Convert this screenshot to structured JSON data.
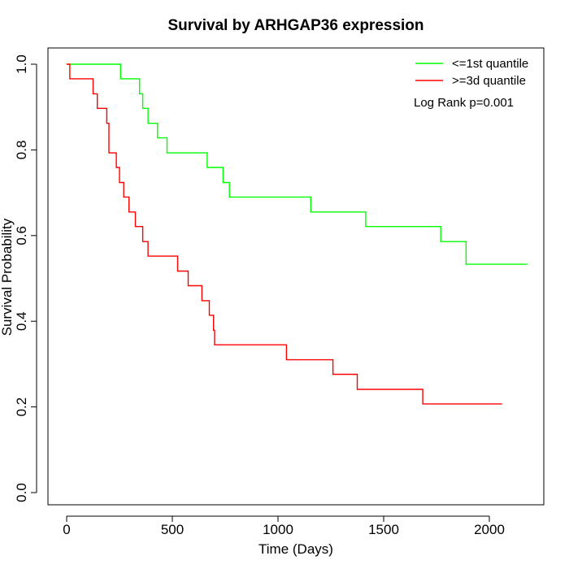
{
  "chart_data": {
    "type": "line",
    "title": "Survival by ARHGAP36 expression",
    "xlabel": "Time (Days)",
    "ylabel": "Survival Probability",
    "xlim": [
      0,
      2200
    ],
    "ylim": [
      0,
      1
    ],
    "x_ticks": [
      0,
      500,
      1000,
      1500,
      2000
    ],
    "x_tick_labels": [
      "0",
      "500",
      "1000",
      "1500",
      "2000"
    ],
    "y_ticks": [
      0,
      0.2,
      0.4,
      0.6,
      0.8,
      1
    ],
    "y_tick_labels": [
      "0.0",
      "0.2",
      "0.4",
      "0.6",
      "0.8",
      "1.0"
    ],
    "grid": false,
    "legend_position": "top-right",
    "annotation": "Log Rank p=0.001",
    "series": [
      {
        "name": "<=1st quantile",
        "color": "#00ff00",
        "step": true,
        "points": [
          [
            0,
            1.0
          ],
          [
            255,
            1.0
          ],
          [
            255,
            0.966
          ],
          [
            345,
            0.966
          ],
          [
            345,
            0.931
          ],
          [
            360,
            0.931
          ],
          [
            360,
            0.897
          ],
          [
            385,
            0.897
          ],
          [
            385,
            0.862
          ],
          [
            430,
            0.862
          ],
          [
            430,
            0.828
          ],
          [
            475,
            0.828
          ],
          [
            475,
            0.793
          ],
          [
            665,
            0.793
          ],
          [
            665,
            0.759
          ],
          [
            740,
            0.759
          ],
          [
            740,
            0.724
          ],
          [
            770,
            0.724
          ],
          [
            770,
            0.69
          ],
          [
            1155,
            0.69
          ],
          [
            1155,
            0.655
          ],
          [
            1415,
            0.655
          ],
          [
            1415,
            0.621
          ],
          [
            1770,
            0.621
          ],
          [
            1770,
            0.586
          ],
          [
            1890,
            0.586
          ],
          [
            1890,
            0.533
          ],
          [
            2180,
            0.533
          ]
        ]
      },
      {
        "name": ">=3d quantile",
        "color": "#ff0000",
        "step": true,
        "points": [
          [
            0,
            1.0
          ],
          [
            15,
            1.0
          ],
          [
            15,
            0.966
          ],
          [
            125,
            0.966
          ],
          [
            125,
            0.931
          ],
          [
            145,
            0.931
          ],
          [
            145,
            0.897
          ],
          [
            190,
            0.897
          ],
          [
            190,
            0.862
          ],
          [
            200,
            0.862
          ],
          [
            200,
            0.793
          ],
          [
            235,
            0.793
          ],
          [
            235,
            0.759
          ],
          [
            250,
            0.759
          ],
          [
            250,
            0.724
          ],
          [
            270,
            0.724
          ],
          [
            270,
            0.69
          ],
          [
            295,
            0.69
          ],
          [
            295,
            0.655
          ],
          [
            325,
            0.655
          ],
          [
            325,
            0.621
          ],
          [
            360,
            0.621
          ],
          [
            360,
            0.586
          ],
          [
            385,
            0.586
          ],
          [
            385,
            0.552
          ],
          [
            525,
            0.552
          ],
          [
            525,
            0.517
          ],
          [
            575,
            0.517
          ],
          [
            575,
            0.483
          ],
          [
            640,
            0.483
          ],
          [
            640,
            0.448
          ],
          [
            675,
            0.448
          ],
          [
            675,
            0.414
          ],
          [
            695,
            0.414
          ],
          [
            695,
            0.379
          ],
          [
            700,
            0.379
          ],
          [
            700,
            0.345
          ],
          [
            1040,
            0.345
          ],
          [
            1040,
            0.31
          ],
          [
            1260,
            0.31
          ],
          [
            1260,
            0.276
          ],
          [
            1375,
            0.276
          ],
          [
            1375,
            0.241
          ],
          [
            1685,
            0.241
          ],
          [
            1685,
            0.207
          ],
          [
            2060,
            0.207
          ]
        ]
      }
    ]
  }
}
